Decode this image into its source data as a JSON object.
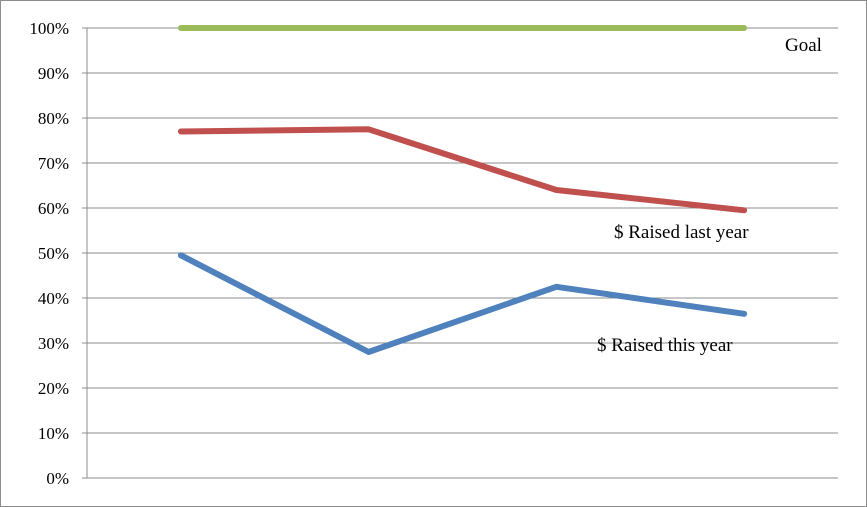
{
  "chart_data": {
    "type": "line",
    "title": "",
    "xlabel": "",
    "ylabel": "",
    "ylim": [
      0,
      100
    ],
    "y_tick_values": [
      0,
      10,
      20,
      30,
      40,
      50,
      60,
      70,
      80,
      90,
      100
    ],
    "y_tick_labels": [
      "0%",
      "10%",
      "20%",
      "30%",
      "40%",
      "50%",
      "60%",
      "70%",
      "80%",
      "90%",
      "100%"
    ],
    "grid": true,
    "categories": [
      "",
      "",
      "",
      ""
    ],
    "series": [
      {
        "name": "Goal",
        "values": [
          100,
          100,
          100,
          100
        ],
        "color": "#9bbb59"
      },
      {
        "name": "$ Raised last year",
        "values": [
          77,
          77.5,
          64,
          59.5
        ],
        "color": "#c0504d"
      },
      {
        "name": "$ Raised this year",
        "values": [
          49.5,
          28,
          42.5,
          36.5
        ],
        "color": "#4f81bd"
      }
    ]
  }
}
